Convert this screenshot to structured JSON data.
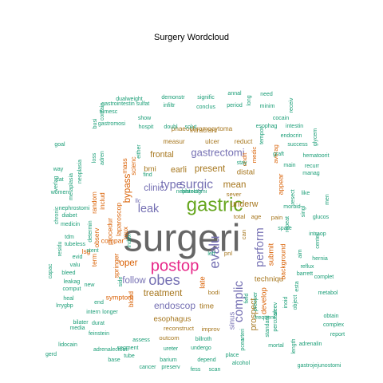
{
  "title": "Surgery  Wordcloud",
  "colors": {
    "c1": "#1b9e77",
    "c2": "#d95f02",
    "c3": "#7570b3",
    "c4": "#e7298a",
    "c5": "#66a61e",
    "c6": "#a6761d",
    "c7": "#666666"
  },
  "words": [
    {
      "text": "surgeri",
      "color": "c7",
      "weight": 1.0
    },
    {
      "text": "gastric",
      "color": "c5",
      "weight": 0.5
    },
    {
      "text": "postop",
      "color": "c4",
      "weight": 0.42
    },
    {
      "text": "obes",
      "color": "c3",
      "weight": 0.38
    },
    {
      "text": "evalu",
      "color": "c3",
      "weight": 0.36
    },
    {
      "text": "surgic",
      "color": "c3",
      "weight": 0.33
    },
    {
      "text": "complic",
      "color": "c3",
      "weight": 0.32
    },
    {
      "text": "leak",
      "color": "c3",
      "weight": 0.3
    },
    {
      "text": "perform",
      "color": "c3",
      "weight": 0.3
    },
    {
      "text": "type",
      "color": "c3",
      "weight": 0.3
    },
    {
      "text": "gastrectomi",
      "color": "c3",
      "weight": 0.27
    },
    {
      "text": "endoscop",
      "color": "c3",
      "weight": 0.25
    },
    {
      "text": "oper",
      "color": "c2",
      "weight": 0.24
    },
    {
      "text": "present",
      "color": "c6",
      "weight": 0.24
    },
    {
      "text": "treatment",
      "color": "c6",
      "weight": 0.24
    },
    {
      "text": "follow",
      "color": "c3",
      "weight": 0.24
    },
    {
      "text": "mean",
      "color": "c6",
      "weight": 0.24
    },
    {
      "text": "clinic",
      "color": "c3",
      "weight": 0.24
    },
    {
      "text": "bypass",
      "color": "c2",
      "weight": 0.24
    },
    {
      "text": "frontal",
      "color": "c6",
      "weight": 0.22
    },
    {
      "text": "underw",
      "color": "c6",
      "weight": 0.22
    },
    {
      "text": "prospect",
      "color": "c6",
      "weight": 0.22
    },
    {
      "text": "earli",
      "color": "c6",
      "weight": 0.22
    },
    {
      "text": "bmi",
      "color": "c6",
      "weight": 0.2
    },
    {
      "text": "techniqu",
      "color": "c6",
      "weight": 0.2
    },
    {
      "text": "distal",
      "color": "c6",
      "weight": 0.2
    },
    {
      "text": "esophagus",
      "color": "c6",
      "weight": 0.2
    },
    {
      "text": "time",
      "color": "c6",
      "weight": 0.2
    },
    {
      "text": "late",
      "color": "c2",
      "weight": 0.2
    },
    {
      "text": "sinus",
      "color": "c3",
      "weight": 0.2
    },
    {
      "text": "submit",
      "color": "c2",
      "weight": 0.2
    },
    {
      "text": "develop",
      "color": "c2",
      "weight": 0.2
    },
    {
      "text": "compar",
      "color": "c2",
      "weight": 0.18
    },
    {
      "text": "procedur",
      "color": "c2",
      "weight": 0.18
    },
    {
      "text": "laparoscop",
      "color": "c2",
      "weight": 0.18
    },
    {
      "text": "symptom",
      "color": "c2",
      "weight": 0.18
    },
    {
      "text": "springer",
      "color": "c2",
      "weight": 0.18
    },
    {
      "text": "appear",
      "color": "c2",
      "weight": 0.18
    },
    {
      "text": "background",
      "color": "c2",
      "weight": 0.18
    },
    {
      "text": "phaeochromocytoma",
      "color": "c6",
      "weight": 0.17
    },
    {
      "text": "measur",
      "color": "c6",
      "weight": 0.17
    },
    {
      "text": "ulcer",
      "color": "c6",
      "weight": 0.17
    },
    {
      "text": "reduct",
      "color": "c6",
      "weight": 0.17
    },
    {
      "text": "intracrani",
      "color": "c6",
      "weight": 0.17
    },
    {
      "text": "includ",
      "color": "c2",
      "weight": 0.17
    },
    {
      "text": "observ",
      "color": "c2",
      "weight": 0.17
    },
    {
      "text": "random",
      "color": "c2",
      "weight": 0.17
    },
    {
      "text": "term",
      "color": "c2",
      "weight": 0.17
    },
    {
      "text": "roux",
      "color": "c2",
      "weight": 0.17
    },
    {
      "text": "blood",
      "color": "c2",
      "weight": 0.17
    },
    {
      "text": "lsg",
      "color": "c2",
      "weight": 0.17
    },
    {
      "text": "mass",
      "color": "c2",
      "weight": 0.17
    },
    {
      "text": "scienc",
      "color": "c2",
      "weight": 0.17
    },
    {
      "text": "reconstruct",
      "color": "c6",
      "weight": 0.16
    },
    {
      "text": "improv",
      "color": "c6",
      "weight": 0.16
    },
    {
      "text": "outcom",
      "color": "c6",
      "weight": 0.16
    },
    {
      "text": "bodi",
      "color": "c6",
      "weight": 0.16
    },
    {
      "text": "age",
      "color": "c6",
      "weight": 0.16
    },
    {
      "text": "total",
      "color": "c6",
      "weight": 0.16
    },
    {
      "text": "pain",
      "color": "c6",
      "weight": 0.16
    },
    {
      "text": "sever",
      "color": "c6",
      "weight": 0.16
    },
    {
      "text": "can",
      "color": "c6",
      "weight": 0.16
    },
    {
      "text": "pnl",
      "color": "c6",
      "weight": 0.16
    },
    {
      "text": "averag",
      "color": "c2",
      "weight": 0.16
    },
    {
      "text": "medic",
      "color": "c2",
      "weight": 0.16
    },
    {
      "text": "llc",
      "color": "c3",
      "weight": 0.16
    },
    {
      "text": "ondit",
      "color": "c2",
      "weight": 0.16
    },
    {
      "text": "show",
      "color": "c1",
      "weight": 0.12
    },
    {
      "text": "hospit",
      "color": "c1",
      "weight": 0.12
    },
    {
      "text": "doubl",
      "color": "c1",
      "weight": 0.12
    },
    {
      "text": "solut",
      "color": "c1",
      "weight": 0.12
    },
    {
      "text": "esophag",
      "color": "c1",
      "weight": 0.12
    },
    {
      "text": "intestin",
      "color": "c1",
      "weight": 0.12
    },
    {
      "text": "endocrin",
      "color": "c1",
      "weight": 0.12
    },
    {
      "text": "success",
      "color": "c1",
      "weight": 0.12
    },
    {
      "text": "graft",
      "color": "c1",
      "weight": 0.12
    },
    {
      "text": "hematoorit",
      "color": "c1",
      "weight": 0.12
    },
    {
      "text": "main",
      "color": "c1",
      "weight": 0.12
    },
    {
      "text": "recurr",
      "color": "c1",
      "weight": 0.12
    },
    {
      "text": "manag",
      "color": "c1",
      "weight": 0.12
    },
    {
      "text": "singl",
      "color": "c1",
      "weight": 0.12
    },
    {
      "text": "like",
      "color": "c1",
      "weight": 0.12
    },
    {
      "text": "morbid",
      "color": "c1",
      "weight": 0.12
    },
    {
      "text": "glucos",
      "color": "c1",
      "weight": 0.12
    },
    {
      "text": "hernia",
      "color": "c1",
      "weight": 0.12
    },
    {
      "text": "reflux",
      "color": "c1",
      "weight": 0.12
    },
    {
      "text": "complet",
      "color": "c1",
      "weight": 0.12
    },
    {
      "text": "metabol",
      "color": "c1",
      "weight": 0.12
    },
    {
      "text": "obtain",
      "color": "c1",
      "weight": 0.12
    },
    {
      "text": "complex",
      "color": "c1",
      "weight": 0.12
    },
    {
      "text": "report",
      "color": "c1",
      "weight": 0.12
    },
    {
      "text": "adrenalin",
      "color": "c1",
      "weight": 0.12
    },
    {
      "text": "mortal",
      "color": "c1",
      "weight": 0.12
    },
    {
      "text": "length",
      "color": "c1",
      "weight": 0.12
    },
    {
      "text": "gastrojejunostomi",
      "color": "c1",
      "weight": 0.12
    },
    {
      "text": "alcohol",
      "color": "c1",
      "weight": 0.12
    },
    {
      "text": "place",
      "color": "c1",
      "weight": 0.12
    },
    {
      "text": "depend",
      "color": "c1",
      "weight": 0.12
    },
    {
      "text": "fess",
      "color": "c1",
      "weight": 0.12
    },
    {
      "text": "scan",
      "color": "c1",
      "weight": 0.12
    },
    {
      "text": "undergo",
      "color": "c1",
      "weight": 0.12
    },
    {
      "text": "billroth",
      "color": "c1",
      "weight": 0.12
    },
    {
      "text": "ureter",
      "color": "c1",
      "weight": 0.12
    },
    {
      "text": "barium",
      "color": "c1",
      "weight": 0.12
    },
    {
      "text": "preserv",
      "color": "c1",
      "weight": 0.12
    },
    {
      "text": "cancer",
      "color": "c1",
      "weight": 0.12
    },
    {
      "text": "segment",
      "color": "c1",
      "weight": 0.12
    },
    {
      "text": "assess",
      "color": "c1",
      "weight": 0.12
    },
    {
      "text": "feinstein",
      "color": "c1",
      "weight": 0.12
    },
    {
      "text": "adrenalectomi",
      "color": "c1",
      "weight": 0.12
    },
    {
      "text": "base",
      "color": "c1",
      "weight": 0.12
    },
    {
      "text": "bilater",
      "color": "c1",
      "weight": 0.12
    },
    {
      "text": "durat",
      "color": "c1",
      "weight": 0.12
    },
    {
      "text": "media",
      "color": "c1",
      "weight": 0.12
    },
    {
      "text": "gerd",
      "color": "c1",
      "weight": 0.12
    },
    {
      "text": "lidocain",
      "color": "c1",
      "weight": 0.12
    },
    {
      "text": "lrrygbp",
      "color": "c1",
      "weight": 0.12
    },
    {
      "text": "heal",
      "color": "c1",
      "weight": 0.12
    },
    {
      "text": "comput",
      "color": "c1",
      "weight": 0.12
    },
    {
      "text": "capac",
      "color": "c1",
      "weight": 0.12
    },
    {
      "text": "valu",
      "color": "c1",
      "weight": 0.12
    },
    {
      "text": "evid",
      "color": "c1",
      "weight": 0.12
    },
    {
      "text": "bleed",
      "color": "c1",
      "weight": 0.12
    },
    {
      "text": "leakag",
      "color": "c1",
      "weight": 0.12
    },
    {
      "text": "new",
      "color": "c1",
      "weight": 0.12
    },
    {
      "text": "intern",
      "color": "c1",
      "weight": 0.12
    },
    {
      "text": "longer",
      "color": "c1",
      "weight": 0.12
    },
    {
      "text": "end",
      "color": "c1",
      "weight": 0.12
    },
    {
      "text": "tubeless",
      "color": "c1",
      "weight": 0.12
    },
    {
      "text": "tdm",
      "color": "c1",
      "weight": 0.12
    },
    {
      "text": "medicin",
      "color": "c1",
      "weight": 0.12
    },
    {
      "text": "diabet",
      "color": "c1",
      "weight": 0.12
    },
    {
      "text": "chronic",
      "color": "c1",
      "weight": 0.12
    },
    {
      "text": "women",
      "color": "c1",
      "weight": 0.12
    },
    {
      "text": "cat",
      "color": "c1",
      "weight": 0.12
    },
    {
      "text": "way",
      "color": "c1",
      "weight": 0.12
    },
    {
      "text": "goal",
      "color": "c1",
      "weight": 0.12
    },
    {
      "text": "verlag",
      "color": "c1",
      "weight": 0.12
    },
    {
      "text": "metaplasia",
      "color": "c1",
      "weight": 0.12
    },
    {
      "text": "neoplasia",
      "color": "c1",
      "weight": 0.12
    },
    {
      "text": "nephrostomi",
      "color": "c1",
      "weight": 0.12
    },
    {
      "text": "stent",
      "color": "c1",
      "weight": 0.12
    },
    {
      "text": "loss",
      "color": "c1",
      "weight": 0.12
    },
    {
      "text": "adren",
      "color": "c1",
      "weight": 0.12
    },
    {
      "text": "index",
      "color": "c1",
      "weight": 0.12
    },
    {
      "text": "find",
      "color": "c1",
      "weight": 0.12
    },
    {
      "text": "either",
      "color": "c1",
      "weight": 0.12
    },
    {
      "text": "left",
      "color": "c1",
      "weight": 0.12
    },
    {
      "text": "side",
      "color": "c1",
      "weight": 0.12
    },
    {
      "text": "busi",
      "color": "c1",
      "weight": 0.12
    },
    {
      "text": "gastromosi",
      "color": "c1",
      "weight": 0.12
    },
    {
      "text": "dualweight",
      "color": "c1",
      "weight": 0.12
    },
    {
      "text": "demonstr",
      "color": "c1",
      "weight": 0.12
    },
    {
      "text": "gastrointestin",
      "color": "c1",
      "weight": 0.12
    },
    {
      "text": "sulfat",
      "color": "c1",
      "weight": 0.12
    },
    {
      "text": "contain",
      "color": "c1",
      "weight": 0.12
    },
    {
      "text": "tumesc",
      "color": "c1",
      "weight": 0.12
    },
    {
      "text": "infiltr",
      "color": "c1",
      "weight": 0.12
    },
    {
      "text": "signific",
      "color": "c1",
      "weight": 0.12
    },
    {
      "text": "conclus",
      "color": "c1",
      "weight": 0.12
    },
    {
      "text": "period",
      "color": "c1",
      "weight": 0.12
    },
    {
      "text": "annal",
      "color": "c1",
      "weight": 0.12
    },
    {
      "text": "long",
      "color": "c1",
      "weight": 0.12
    },
    {
      "text": "need",
      "color": "c1",
      "weight": 0.12
    },
    {
      "text": "minim",
      "color": "c1",
      "weight": 0.12
    },
    {
      "text": "cocain",
      "color": "c1",
      "weight": 0.12
    },
    {
      "text": "receiv",
      "color": "c1",
      "weight": 0.12
    },
    {
      "text": "glycem",
      "color": "c1",
      "weight": 0.12
    },
    {
      "text": "tempor",
      "color": "c1",
      "weight": 0.12
    },
    {
      "text": "stay",
      "color": "c1",
      "weight": 0.12
    },
    {
      "text": "men",
      "color": "c1",
      "weight": 0.12
    },
    {
      "text": "center",
      "color": "c1",
      "weight": 0.12
    },
    {
      "text": "intraop",
      "color": "c1",
      "weight": 0.12
    },
    {
      "text": "spare",
      "color": "c1",
      "weight": 0.12
    },
    {
      "text": "aim",
      "color": "c1",
      "weight": 0.12
    },
    {
      "text": "esta",
      "color": "c1",
      "weight": 0.12
    },
    {
      "text": "barrett",
      "color": "c1",
      "weight": 0.12
    },
    {
      "text": "object",
      "color": "c1",
      "weight": 0.12
    },
    {
      "text": "inoid",
      "color": "c1",
      "weight": 0.12
    },
    {
      "text": "percutan",
      "color": "c1",
      "weight": 0.12
    },
    {
      "text": "standard",
      "color": "c1",
      "weight": 0.12
    },
    {
      "text": "sleev",
      "color": "c1",
      "weight": 0.12
    },
    {
      "text": "field",
      "color": "c1",
      "weight": 0.12
    },
    {
      "text": "frequent",
      "color": "c1",
      "weight": 0.12
    },
    {
      "text": "preoper",
      "color": "c1",
      "weight": 0.12
    },
    {
      "text": "arteri",
      "color": "c1",
      "weight": 0.12
    },
    {
      "text": "pcea",
      "color": "c1",
      "weight": 0.12
    },
    {
      "text": "tube",
      "color": "c1",
      "weight": 0.12
    },
    {
      "text": "resect",
      "color": "c1",
      "weight": 0.12
    },
    {
      "text": "repeat",
      "color": "c1",
      "weight": 0.12
    },
    {
      "text": "residu",
      "color": "c1",
      "weight": 0.12
    },
    {
      "text": "determin",
      "color": "c1",
      "weight": 0.12
    },
    {
      "text": "histolog",
      "color": "c1",
      "weight": 0.12
    },
    {
      "text": "nephrectomi",
      "color": "c1",
      "weight": 0.12
    }
  ]
}
